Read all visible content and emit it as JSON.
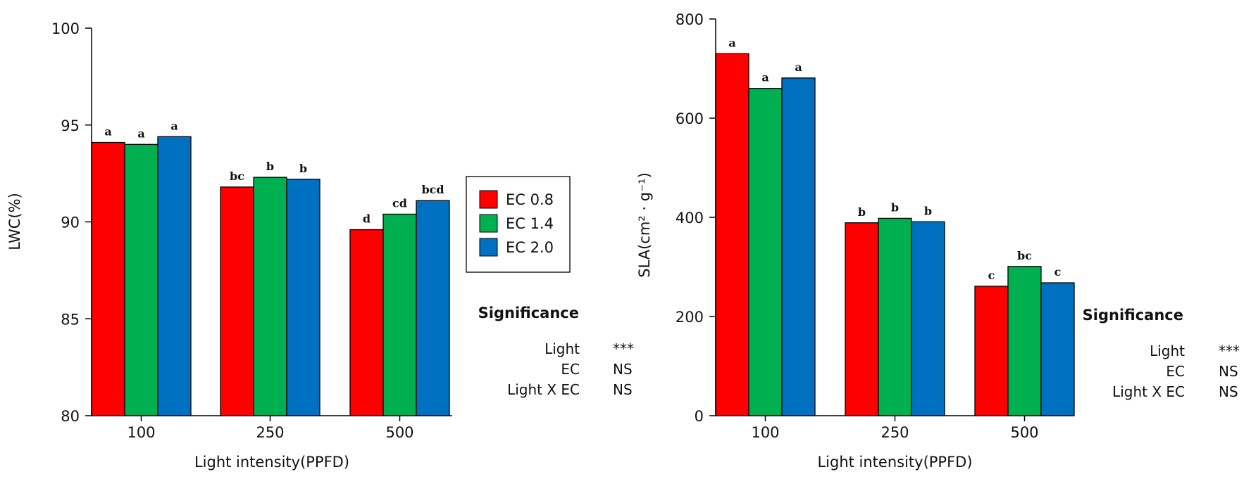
{
  "chart_data": [
    {
      "type": "bar",
      "xlabel": "Light intensity(PPFD)",
      "ylabel": "LWC(%)",
      "ylim": [
        80,
        100
      ],
      "yticks": [
        80,
        85,
        90,
        95,
        100
      ],
      "categories": [
        "100",
        "250",
        "500"
      ],
      "series": [
        {
          "name": "EC 0.8",
          "color": "#ff0000",
          "values": [
            94.1,
            91.8,
            89.6
          ],
          "letters": [
            "a",
            "bc",
            "d"
          ]
        },
        {
          "name": "EC 1.4",
          "color": "#00b050",
          "values": [
            94.0,
            92.3,
            90.4
          ],
          "letters": [
            "a",
            "b",
            "cd"
          ]
        },
        {
          "name": "EC 2.0",
          "color": "#0070c0",
          "values": [
            94.4,
            92.2,
            91.1
          ],
          "letters": [
            "a",
            "b",
            "bcd"
          ]
        }
      ],
      "legend": {
        "position": "right"
      },
      "significance": {
        "title": "Significance",
        "rows": [
          {
            "factor": "Light",
            "value": "***"
          },
          {
            "factor": "EC",
            "value": "NS"
          },
          {
            "factor": "Light X EC",
            "value": "NS"
          }
        ]
      }
    },
    {
      "type": "bar",
      "xlabel": "Light intensity(PPFD)",
      "ylabel": "SLA(cm² · g⁻¹)",
      "ylim": [
        0,
        800
      ],
      "yticks": [
        0,
        200,
        400,
        600,
        800
      ],
      "categories": [
        "100",
        "250",
        "500"
      ],
      "series": [
        {
          "name": "EC 0.8",
          "color": "#ff0000",
          "values": [
            730,
            389,
            261
          ],
          "letters": [
            "a",
            "b",
            "c"
          ]
        },
        {
          "name": "EC 1.4",
          "color": "#00b050",
          "values": [
            660,
            398,
            301
          ],
          "letters": [
            "a",
            "b",
            "bc"
          ]
        },
        {
          "name": "EC 2.0",
          "color": "#0070c0",
          "values": [
            681,
            391,
            268
          ],
          "letters": [
            "a",
            "b",
            "c"
          ]
        }
      ],
      "significance": {
        "title": "Significance",
        "rows": [
          {
            "factor": "Light",
            "value": "***"
          },
          {
            "factor": "EC",
            "value": "NS"
          },
          {
            "factor": "Light X EC",
            "value": "NS"
          }
        ]
      }
    }
  ]
}
